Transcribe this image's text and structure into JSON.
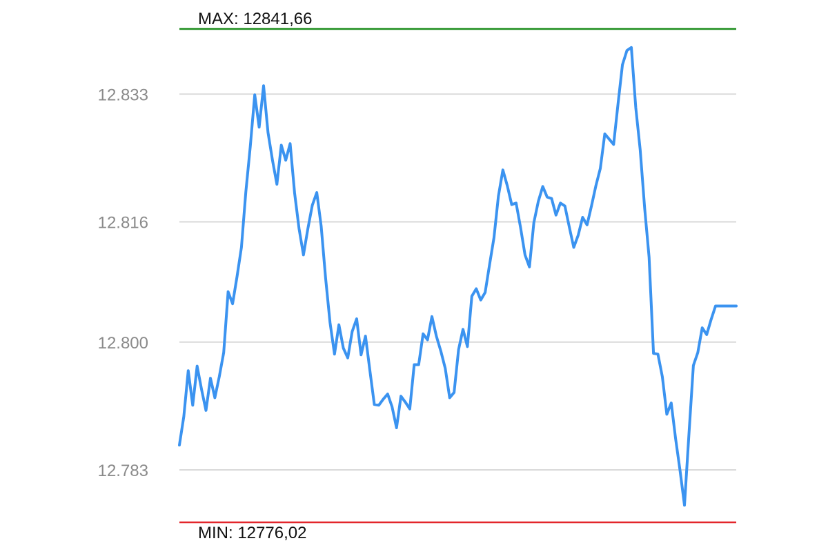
{
  "chart_data": {
    "type": "line",
    "title": "",
    "xlabel": "",
    "ylabel": "",
    "ylim": [
      12776.02,
      12841.66
    ],
    "grid": true,
    "line_color": "#3b93f0",
    "grid_color": "#d9d9d9",
    "y_ticks": [
      {
        "value": 12833,
        "label": "12.833"
      },
      {
        "value": 12816,
        "label": "12.816"
      },
      {
        "value": 12800,
        "label": "12.800"
      },
      {
        "value": 12783,
        "label": "12.783"
      }
    ],
    "reference_lines": [
      {
        "kind": "max",
        "value": 12841.66,
        "label": "MAX: 12841,66",
        "color": "#1a8c1a"
      },
      {
        "kind": "min",
        "value": 12776.02,
        "label": "MIN: 12776,02",
        "color": "#e3262b"
      }
    ],
    "series": [
      {
        "values": [
          12786.3,
          12790.1,
          12796.2,
          12791.6,
          12796.8,
          12793.7,
          12790.9,
          12795.2,
          12792.6,
          12795.4,
          12798.6,
          12806.7,
          12805.1,
          12808.7,
          12812.6,
          12820.0,
          12826.0,
          12832.9,
          12828.6,
          12834.1,
          12827.9,
          12824.2,
          12821.0,
          12826.2,
          12824.2,
          12826.4,
          12819.8,
          12815.1,
          12811.6,
          12815.1,
          12818.2,
          12819.9,
          12815.4,
          12808.5,
          12802.6,
          12798.4,
          12802.3,
          12799.2,
          12797.9,
          12801.4,
          12803.1,
          12798.3,
          12800.8,
          12796.2,
          12791.7,
          12791.6,
          12792.4,
          12793.1,
          12791.4,
          12788.6,
          12792.8,
          12792.0,
          12791.1,
          12797.0,
          12797.0,
          12801.1,
          12800.3,
          12803.4,
          12800.8,
          12798.8,
          12796.5,
          12792.6,
          12793.3,
          12799.0,
          12801.7,
          12799.4,
          12806.1,
          12807.1,
          12805.6,
          12806.6,
          12810.3,
          12813.9,
          12819.4,
          12822.9,
          12820.8,
          12818.3,
          12818.5,
          12815.2,
          12811.6,
          12810.0,
          12815.9,
          12818.7,
          12820.7,
          12819.3,
          12819.1,
          12816.9,
          12818.5,
          12818.1,
          12815.3,
          12812.6,
          12814.2,
          12816.6,
          12815.6,
          12818.1,
          12820.8,
          12823.1,
          12827.7,
          12827.0,
          12826.3,
          12831.7,
          12836.9,
          12838.8,
          12839.2,
          12831.2,
          12825.6,
          12817.8,
          12811.3,
          12798.5,
          12798.4,
          12795.4,
          12790.4,
          12791.9,
          12787.1,
          12782.9,
          12778.3,
          12787.8,
          12796.9,
          12798.6,
          12801.9,
          12801.0,
          12803.0,
          12804.8
        ]
      }
    ]
  }
}
